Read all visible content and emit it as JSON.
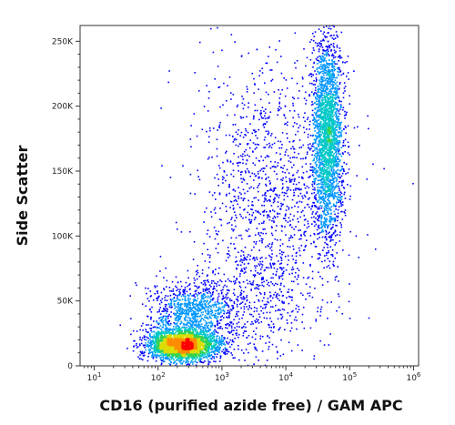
{
  "chart_data": {
    "type": "scatter",
    "subtype": "flow-cytometry-density-dot-plot",
    "title": "",
    "xlabel": "CD16 (purified azide free) / GAM APC",
    "ylabel": "Side Scatter",
    "x_scale": "log",
    "xlim": [
      6,
      1200000
    ],
    "ylim": [
      0,
      262144
    ],
    "y_scale": "linear",
    "x_ticks": [
      {
        "value": 10,
        "base": "10",
        "exp": "1"
      },
      {
        "value": 100,
        "base": "10",
        "exp": "2"
      },
      {
        "value": 1000,
        "base": "10",
        "exp": "3"
      },
      {
        "value": 10000,
        "base": "10",
        "exp": "4"
      },
      {
        "value": 100000,
        "base": "10",
        "exp": "5"
      },
      {
        "value": 1000000,
        "base": "10",
        "exp": "6"
      }
    ],
    "y_ticks": [
      {
        "value": 0,
        "label": "0"
      },
      {
        "value": 50000,
        "label": "50K"
      },
      {
        "value": 100000,
        "label": "100K"
      },
      {
        "value": 150000,
        "label": "150K"
      },
      {
        "value": 200000,
        "label": "200K"
      },
      {
        "value": 250000,
        "label": "250K"
      }
    ],
    "grid": false,
    "legend": "none",
    "density_colors": [
      "#0000ff",
      "#0096ff",
      "#00c8c8",
      "#32d250",
      "#dcdc00",
      "#ff8c00",
      "#ff0000"
    ],
    "populations": [
      {
        "x_center": 250,
        "y_center": 16000,
        "x_spread_decades": 0.28,
        "y_spread": 6000,
        "points": 2800
      },
      {
        "x_center": 350,
        "y_center": 42000,
        "x_spread_decades": 0.32,
        "y_spread": 11000,
        "points": 900
      },
      {
        "x_center": 45000,
        "y_center": 175000,
        "x_spread_decades": 0.12,
        "y_spread": 40000,
        "points": 2600
      },
      {
        "x_center": 5000,
        "y_center": 130000,
        "x_spread_decades": 0.55,
        "y_spread": 55000,
        "points": 1200
      },
      {
        "x_center": 3000,
        "y_center": 50000,
        "x_spread_decades": 0.5,
        "y_spread": 25000,
        "points": 400
      }
    ]
  }
}
